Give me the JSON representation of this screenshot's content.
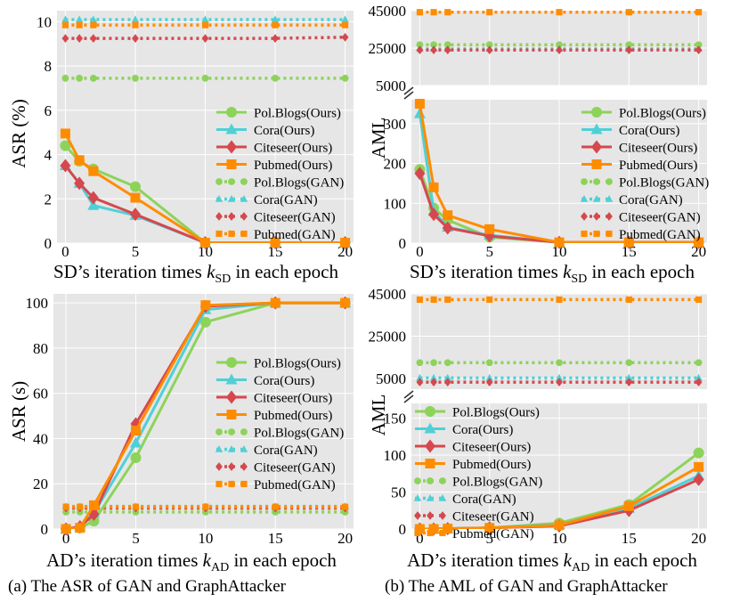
{
  "colors": {
    "pol": "#8dd35a",
    "cora": "#4fd0d6",
    "cite": "#d5484d",
    "pub": "#ff8c00",
    "panel": "#e6e6e6"
  },
  "x_values": [
    0,
    1,
    2,
    5,
    10,
    15,
    20
  ],
  "x_ticks": [
    0,
    5,
    10,
    15,
    20
  ],
  "captions": {
    "a": "(a) The ASR of GAN and GraphAttacker",
    "b": "(b) The AML of GAN and GraphAttacker"
  },
  "chart_data": [
    {
      "id": "a-top",
      "type": "line",
      "ylabel": "ASR (%)",
      "xlabel_prefix": "SD’s iteration times ",
      "xlabel_k": "k",
      "xlabel_sub": "SD",
      "xlabel_suffix": " in each epoch",
      "xlim": [
        -0.6,
        20.6
      ],
      "ylim": [
        0,
        10.5
      ],
      "y_ticks": [
        0,
        2,
        4,
        6,
        8,
        10
      ],
      "legend_position": "center-right",
      "series": [
        {
          "name": "Pol.Blogs(Ours)",
          "key": "pol",
          "style": "solid",
          "marker": "circle",
          "values": [
            4.4,
            3.7,
            3.35,
            2.55,
            0.02,
            0.02,
            0.02
          ]
        },
        {
          "name": "Cora(Ours)",
          "key": "cora",
          "style": "solid",
          "marker": "triangle",
          "values": [
            3.5,
            2.7,
            1.7,
            1.25,
            0.02,
            0.02,
            0.02
          ]
        },
        {
          "name": "Citeseer(Ours)",
          "key": "cite",
          "style": "solid",
          "marker": "diamond",
          "values": [
            3.5,
            2.7,
            2.05,
            1.3,
            0.02,
            0.02,
            0.02
          ]
        },
        {
          "name": "Pubmed(Ours)",
          "key": "pub",
          "style": "solid",
          "marker": "square",
          "values": [
            4.95,
            3.75,
            3.25,
            2.05,
            0.02,
            0.02,
            0.02
          ]
        },
        {
          "name": "Pol.Blogs(GAN)",
          "key": "pol",
          "style": "dotted",
          "marker": "circle",
          "values": [
            7.45,
            7.45,
            7.45,
            7.45,
            7.45,
            7.45,
            7.45
          ]
        },
        {
          "name": "Cora(GAN)",
          "key": "cora",
          "style": "dotted",
          "marker": "triangle",
          "values": [
            10.1,
            10.1,
            10.1,
            10.1,
            10.1,
            10.1,
            10.1
          ]
        },
        {
          "name": "Citeseer(GAN)",
          "key": "cite",
          "style": "dotted",
          "marker": "diamond",
          "values": [
            9.25,
            9.25,
            9.25,
            9.25,
            9.25,
            9.25,
            9.3
          ]
        },
        {
          "name": "Pubmed(GAN)",
          "key": "pub",
          "style": "dotted",
          "marker": "square",
          "values": [
            9.85,
            9.85,
            9.85,
            9.85,
            9.85,
            9.85,
            9.85
          ]
        }
      ]
    },
    {
      "id": "b-top",
      "type": "line",
      "ylabel": "AML",
      "xlabel_prefix": "SD’s iteration times ",
      "xlabel_k": "k",
      "xlabel_sub": "SD",
      "xlabel_suffix": " in each epoch",
      "xlim": [
        -0.6,
        20.6
      ],
      "broken_axis": true,
      "lower_ylim": [
        0,
        360
      ],
      "lower_y_ticks": [
        0,
        100,
        200,
        300
      ],
      "upper_ylim": [
        5000,
        45000
      ],
      "upper_y_ticks": [
        5000,
        25000,
        45000
      ],
      "legend_position": "center-right",
      "series": [
        {
          "name": "Pol.Blogs(Ours)",
          "key": "pol",
          "style": "solid",
          "marker": "circle",
          "values": [
            185,
            88,
            58,
            15,
            2,
            2,
            2
          ]
        },
        {
          "name": "Cora(Ours)",
          "key": "cora",
          "style": "solid",
          "marker": "triangle",
          "values": [
            325,
            80,
            40,
            20,
            2,
            2,
            2
          ]
        },
        {
          "name": "Citeseer(Ours)",
          "key": "cite",
          "style": "solid",
          "marker": "diamond",
          "values": [
            175,
            72,
            38,
            18,
            2,
            2,
            2
          ]
        },
        {
          "name": "Pubmed(Ours)",
          "key": "pub",
          "style": "solid",
          "marker": "square",
          "values": [
            350,
            140,
            70,
            35,
            2,
            2,
            2
          ]
        },
        {
          "name": "Pol.Blogs(GAN)",
          "key": "pol",
          "style": "dotted",
          "marker": "circle",
          "values": [
            26800,
            26800,
            26800,
            26800,
            26800,
            26800,
            26800
          ]
        },
        {
          "name": "Cora(GAN)",
          "key": "cora",
          "style": "dotted",
          "marker": "triangle",
          "values": [
            24600,
            24600,
            24600,
            24600,
            24600,
            24600,
            24600
          ]
        },
        {
          "name": "Citeseer(GAN)",
          "key": "cite",
          "style": "dotted",
          "marker": "diamond",
          "values": [
            24000,
            24000,
            24000,
            24000,
            24000,
            24000,
            24000
          ]
        },
        {
          "name": "Pubmed(GAN)",
          "key": "pub",
          "style": "dotted",
          "marker": "square",
          "values": [
            44200,
            44200,
            44200,
            44200,
            44200,
            44200,
            44200
          ]
        }
      ]
    },
    {
      "id": "a-bottom",
      "type": "line",
      "ylabel": "ASR (s)",
      "xlabel_prefix": "AD’s iteration times ",
      "xlabel_k": "k",
      "xlabel_sub": "AD",
      "xlabel_suffix": " in each epoch",
      "xlim": [
        -0.9,
        20.6
      ],
      "ylim": [
        0,
        104
      ],
      "y_ticks": [
        0,
        20,
        40,
        60,
        80,
        100
      ],
      "legend_position": "center-right",
      "series": [
        {
          "name": "Pol.Blogs(Ours)",
          "key": "pol",
          "style": "solid",
          "marker": "circle",
          "values": [
            0,
            0.5,
            3.5,
            31.5,
            91.5,
            100,
            100
          ]
        },
        {
          "name": "Cora(Ours)",
          "key": "cora",
          "style": "solid",
          "marker": "triangle",
          "values": [
            0,
            1,
            7,
            38,
            97,
            100,
            100
          ]
        },
        {
          "name": "Citeseer(Ours)",
          "key": "cite",
          "style": "solid",
          "marker": "diamond",
          "values": [
            0,
            1,
            6.5,
            46.5,
            98.5,
            100,
            100
          ]
        },
        {
          "name": "Pubmed(Ours)",
          "key": "pub",
          "style": "solid",
          "marker": "square",
          "values": [
            0,
            0.5,
            10.5,
            43.5,
            99,
            100,
            100
          ]
        },
        {
          "name": "Pol.Blogs(GAN)",
          "key": "pol",
          "style": "dotted",
          "marker": "circle",
          "values": [
            7.5,
            7.5,
            7.5,
            7.5,
            7.5,
            7.5,
            7.5
          ]
        },
        {
          "name": "Cora(GAN)",
          "key": "cora",
          "style": "dotted",
          "marker": "triangle",
          "values": [
            10,
            10,
            10,
            10,
            10,
            10,
            10
          ]
        },
        {
          "name": "Citeseer(GAN)",
          "key": "cite",
          "style": "dotted",
          "marker": "diamond",
          "values": [
            9.2,
            9.2,
            9.2,
            9.2,
            9.2,
            9.2,
            9.2
          ]
        },
        {
          "name": "Pubmed(GAN)",
          "key": "pub",
          "style": "dotted",
          "marker": "square",
          "values": [
            9.8,
            9.8,
            9.8,
            9.8,
            9.8,
            9.8,
            9.8
          ]
        }
      ]
    },
    {
      "id": "b-bottom",
      "type": "line",
      "ylabel": "AML",
      "xlabel_prefix": "AD’s iteration times ",
      "xlabel_k": "k",
      "xlabel_sub": "AD",
      "xlabel_suffix": " in each epoch",
      "xlim": [
        -0.6,
        20.6
      ],
      "broken_axis": true,
      "lower_ylim": [
        0,
        170
      ],
      "lower_y_ticks": [
        0,
        50,
        100,
        150
      ],
      "upper_ylim": [
        0,
        45000
      ],
      "upper_y_ticks": [
        5000,
        25000,
        45000
      ],
      "legend_position": "center-left",
      "series": [
        {
          "name": "Pol.Blogs(Ours)",
          "key": "pol",
          "style": "solid",
          "marker": "circle",
          "values": [
            0,
            0,
            0.5,
            1.5,
            8,
            33,
            103
          ]
        },
        {
          "name": "Cora(Ours)",
          "key": "cora",
          "style": "solid",
          "marker": "triangle",
          "values": [
            0,
            0,
            0.5,
            1.5,
            6,
            28,
            72
          ]
        },
        {
          "name": "Citeseer(Ours)",
          "key": "cite",
          "style": "solid",
          "marker": "diamond",
          "values": [
            0,
            0,
            0.5,
            1.5,
            4,
            25,
            67
          ]
        },
        {
          "name": "Pubmed(Ours)",
          "key": "pub",
          "style": "solid",
          "marker": "square",
          "values": [
            0,
            0,
            0.5,
            1.5,
            5,
            31,
            84
          ]
        },
        {
          "name": "Pol.Blogs(GAN)",
          "key": "pol",
          "style": "dotted",
          "marker": "circle",
          "values": [
            12500,
            12500,
            12500,
            12500,
            12500,
            12500,
            12500
          ]
        },
        {
          "name": "Cora(GAN)",
          "key": "cora",
          "style": "dotted",
          "marker": "triangle",
          "values": [
            5300,
            5300,
            5300,
            5300,
            5300,
            5300,
            5300
          ]
        },
        {
          "name": "Citeseer(GAN)",
          "key": "cite",
          "style": "dotted",
          "marker": "diamond",
          "values": [
            3300,
            3300,
            3300,
            3300,
            3300,
            3300,
            3300
          ]
        },
        {
          "name": "Pubmed(GAN)",
          "key": "pub",
          "style": "dotted",
          "marker": "square",
          "values": [
            42300,
            42300,
            42300,
            42300,
            42300,
            42300,
            42300
          ]
        }
      ]
    }
  ]
}
